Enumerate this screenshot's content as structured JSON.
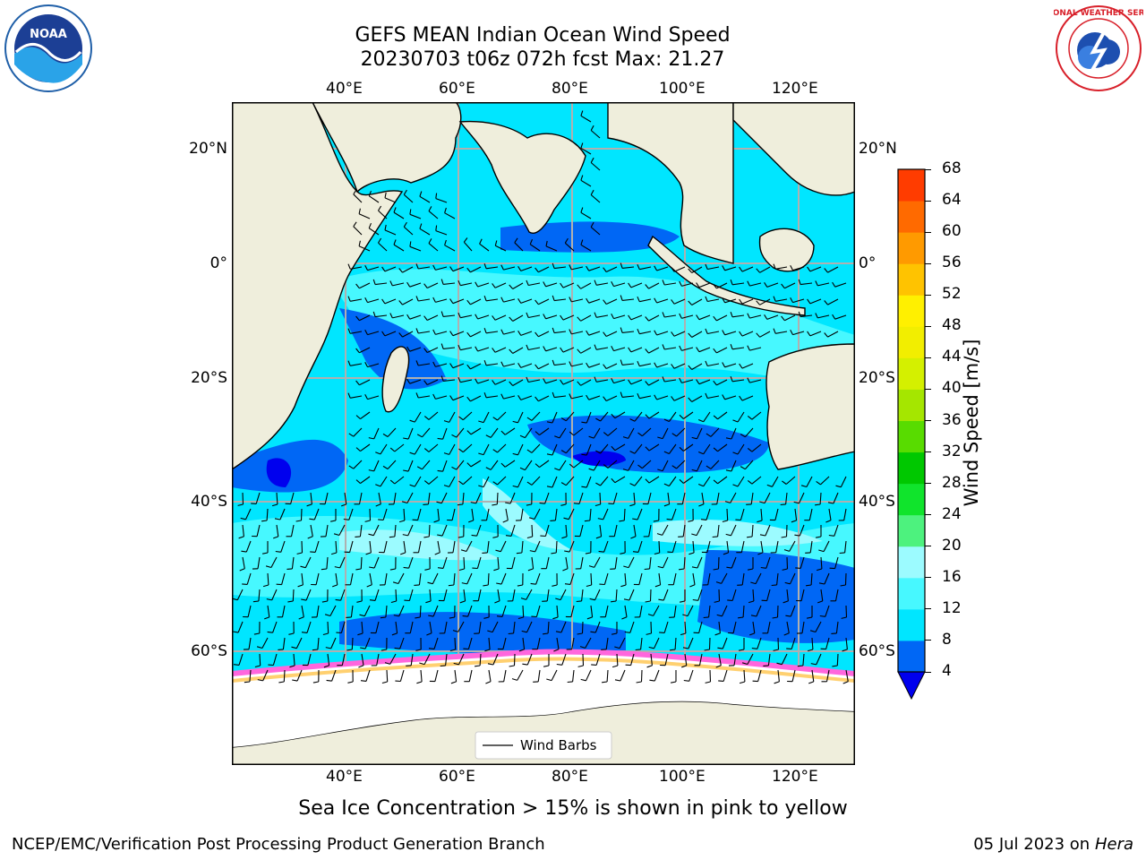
{
  "header": {
    "title_line1": "GEFS MEAN Indian Ocean Wind Speed",
    "title_line2": "20230703 t06z 072h fcst   Max: 21.27"
  },
  "logos": {
    "noaa": {
      "icon": "noaa-logo",
      "text": "NOAA"
    },
    "nws": {
      "icon": "nws-logo",
      "text": "NATIONAL WEATHER SERVICE"
    }
  },
  "map": {
    "lon_ticks": [
      "40°E",
      "60°E",
      "80°E",
      "100°E",
      "120°E"
    ],
    "lat_ticks": [
      "20°N",
      "0°",
      "20°S",
      "40°S",
      "60°S"
    ],
    "extent": {
      "lon_min": 20,
      "lon_max": 130,
      "lat_min": -75,
      "lat_max": 28
    },
    "gridlines": true,
    "land_color": "#efeedc",
    "ice_color": "#ffffff",
    "legend_label": "Wind Barbs",
    "caption": "Sea Ice Concentration > 15% is shown in pink to yellow"
  },
  "colorbar": {
    "label": "Wind Speed [m/s]",
    "tick_labels": [
      "4",
      "8",
      "12",
      "16",
      "20",
      "24",
      "28",
      "32",
      "36",
      "40",
      "44",
      "48",
      "52",
      "56",
      "60",
      "64",
      "68"
    ],
    "colors": [
      "#0067f5",
      "#00e6ff",
      "#47f8ff",
      "#9cfbff",
      "#4df27e",
      "#10e42c",
      "#00c800",
      "#58dc00",
      "#a5e600",
      "#d4f000",
      "#f2ee00",
      "#fff000",
      "#ffc300",
      "#ff9a00",
      "#ff6a00",
      "#ff3c00",
      "#ff0000"
    ],
    "extend_color": "#0000ee"
  },
  "footer": {
    "left": "NCEP/EMC/Verification Post Processing Product Generation Branch",
    "date": "05 Jul 2023 on",
    "machine": "Hera"
  }
}
